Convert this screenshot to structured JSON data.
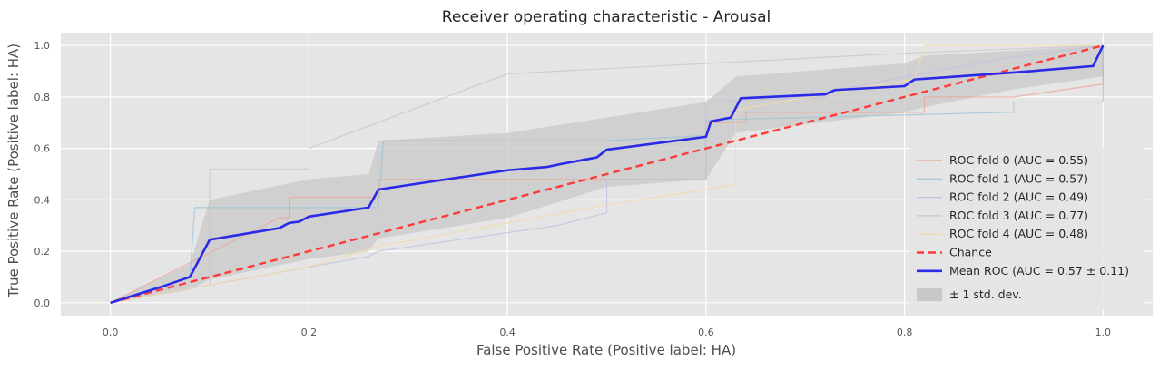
{
  "chart_data": {
    "type": "line",
    "title": "Receiver operating characteristic - Arousal",
    "xlabel": "False Positive Rate (Positive label: HA)",
    "ylabel": "True Positive Rate (Positive label: HA)",
    "xlim": [
      -0.05,
      1.05
    ],
    "ylim": [
      -0.05,
      1.05
    ],
    "xticks": [
      "0.0",
      "0.2",
      "0.4",
      "0.6",
      "0.8",
      "1.0"
    ],
    "yticks": [
      "0.0",
      "0.2",
      "0.4",
      "0.6",
      "0.8",
      "1.0"
    ],
    "grid": true,
    "legend_position": "lower-right",
    "series": [
      {
        "name": "ROC fold 0 (AUC = 0.55)",
        "color": "#e8a898",
        "x": [
          0,
          0.17,
          0.18,
          0.18,
          0.27,
          0.27,
          0.6,
          0.6,
          0.64,
          0.64,
          0.82,
          0.82,
          0.91,
          1.0,
          1.0
        ],
        "y": [
          0,
          0.33,
          0.33,
          0.41,
          0.41,
          0.48,
          0.48,
          0.7,
          0.7,
          0.74,
          0.74,
          0.8,
          0.8,
          0.85,
          1.0
        ]
      },
      {
        "name": "ROC fold 1 (AUC = 0.57)",
        "color": "#9ec3d6",
        "x": [
          0,
          0.08,
          0.085,
          0.27,
          0.275,
          0.5,
          0.6,
          0.6,
          0.9,
          0.91,
          0.91,
          1.0,
          1.0
        ],
        "y": [
          0,
          0.1,
          0.37,
          0.37,
          0.63,
          0.63,
          0.65,
          0.71,
          0.74,
          0.74,
          0.78,
          0.78,
          1.0
        ]
      },
      {
        "name": "ROC fold 2 (AUC = 0.49)",
        "color": "#c0c0e0",
        "x": [
          0,
          0.26,
          0.27,
          0.45,
          0.5,
          0.5,
          0.6,
          0.6,
          0.72,
          0.72,
          0.9,
          1.0
        ],
        "y": [
          0,
          0.18,
          0.2,
          0.3,
          0.35,
          0.48,
          0.48,
          0.78,
          0.8,
          0.82,
          0.95,
          1.0
        ]
      },
      {
        "name": "ROC fold 3 (AUC = 0.77)",
        "color": "#c8c8c8",
        "x": [
          0,
          0.1,
          0.1,
          0.2,
          0.2,
          0.4,
          0.8,
          0.8,
          1.0
        ],
        "y": [
          0,
          0.07,
          0.52,
          0.52,
          0.6,
          0.89,
          0.97,
          0.97,
          1.0
        ]
      },
      {
        "name": "ROC fold 4 (AUC = 0.48)",
        "color": "#f5d9a8",
        "x": [
          0,
          0.2,
          0.27,
          0.5,
          0.6,
          0.63,
          0.63,
          0.81,
          0.82,
          1.0
        ],
        "y": [
          0,
          0.14,
          0.22,
          0.38,
          0.44,
          0.46,
          0.75,
          0.87,
          1.0,
          1.0
        ]
      },
      {
        "name": "Chance",
        "color": "#ff3a3a",
        "style": "dashed",
        "x": [
          0,
          1
        ],
        "y": [
          0,
          1
        ]
      },
      {
        "name": "Mean ROC (AUC = 0.57 ± 0.11)",
        "color": "#2a2ae8",
        "x": [
          0,
          0.05,
          0.08,
          0.1,
          0.17,
          0.18,
          0.19,
          0.2,
          0.26,
          0.27,
          0.4,
          0.44,
          0.455,
          0.49,
          0.5,
          0.6,
          0.605,
          0.625,
          0.635,
          0.72,
          0.73,
          0.8,
          0.81,
          0.91,
          0.99,
          1.0
        ],
        "y": [
          0,
          0.06,
          0.1,
          0.245,
          0.29,
          0.31,
          0.315,
          0.335,
          0.37,
          0.44,
          0.515,
          0.528,
          0.54,
          0.565,
          0.595,
          0.645,
          0.705,
          0.72,
          0.795,
          0.81,
          0.827,
          0.842,
          0.868,
          0.895,
          0.92,
          1.0
        ]
      },
      {
        "name": "± 1 std. dev.",
        "color": "#c8c8c8",
        "type": "band",
        "x": [
          0,
          0.08,
          0.1,
          0.2,
          0.26,
          0.27,
          0.4,
          0.5,
          0.6,
          0.63,
          0.8,
          0.82,
          0.91,
          1.0
        ],
        "upper": [
          0,
          0.15,
          0.4,
          0.48,
          0.5,
          0.63,
          0.66,
          0.72,
          0.78,
          0.88,
          0.93,
          0.96,
          0.98,
          1.0
        ],
        "lower": [
          0,
          0.05,
          0.09,
          0.17,
          0.2,
          0.25,
          0.33,
          0.45,
          0.48,
          0.66,
          0.74,
          0.76,
          0.83,
          0.88
        ]
      }
    ]
  }
}
